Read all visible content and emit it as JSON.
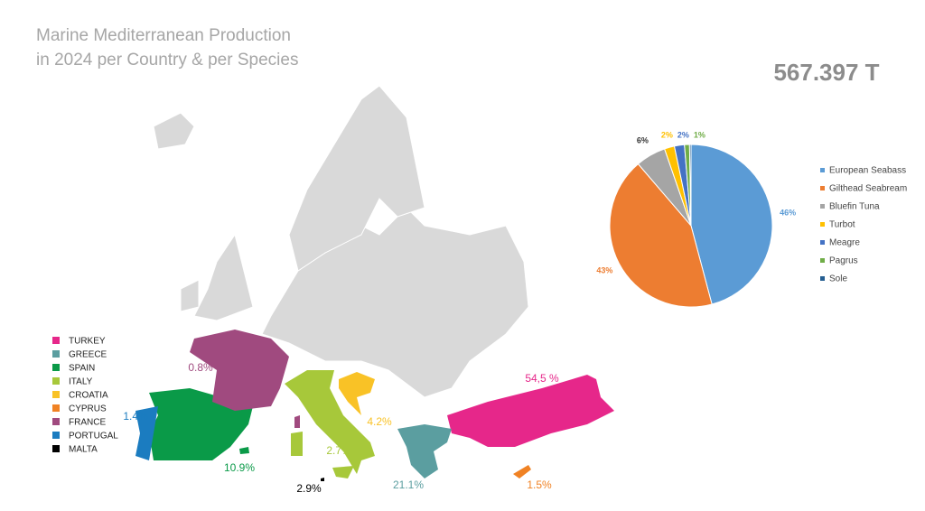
{
  "title": [
    "Marine Mediterranean Production",
    "in 2024 per Country & per Species"
  ],
  "total": "567.397 T",
  "map": {
    "countries": [
      {
        "name": "TURKEY",
        "color": "#e6278a",
        "label": "54,5 %"
      },
      {
        "name": "GREECE",
        "color": "#5b9ea0",
        "label": "21.1%"
      },
      {
        "name": "SPAIN",
        "color": "#0a9a48",
        "label": "10.9%"
      },
      {
        "name": "ITALY",
        "color": "#a7c83a",
        "label": "2.7%"
      },
      {
        "name": "CROATIA",
        "color": "#f9c226",
        "label": "4.2%"
      },
      {
        "name": "CYPRUS",
        "color": "#f08224",
        "label": "1.5%"
      },
      {
        "name": "FRANCE",
        "color": "#a04a7f",
        "label": "0.8%"
      },
      {
        "name": "PORTUGAL",
        "color": "#1b7cc0",
        "label": "1.4%"
      },
      {
        "name": "MALTA",
        "color": "#000000",
        "label": "2.9%"
      }
    ]
  },
  "chart_data": {
    "type": "pie",
    "categories": [
      "European Seabass",
      "Gilthead Seabream",
      "Bluefin Tuna",
      "Turbot",
      "Meagre",
      "Pagrus",
      "Sole"
    ],
    "values": [
      46,
      43,
      6,
      2,
      2,
      1,
      0.3
    ],
    "value_labels": [
      "46%",
      "43%",
      "6%",
      "2%",
      "2%",
      "1%",
      null
    ],
    "colors": [
      "#5b9bd5",
      "#ed7d31",
      "#a5a5a5",
      "#ffc000",
      "#4472c4",
      "#70ad47",
      "#255e91"
    ],
    "legend": "right"
  }
}
